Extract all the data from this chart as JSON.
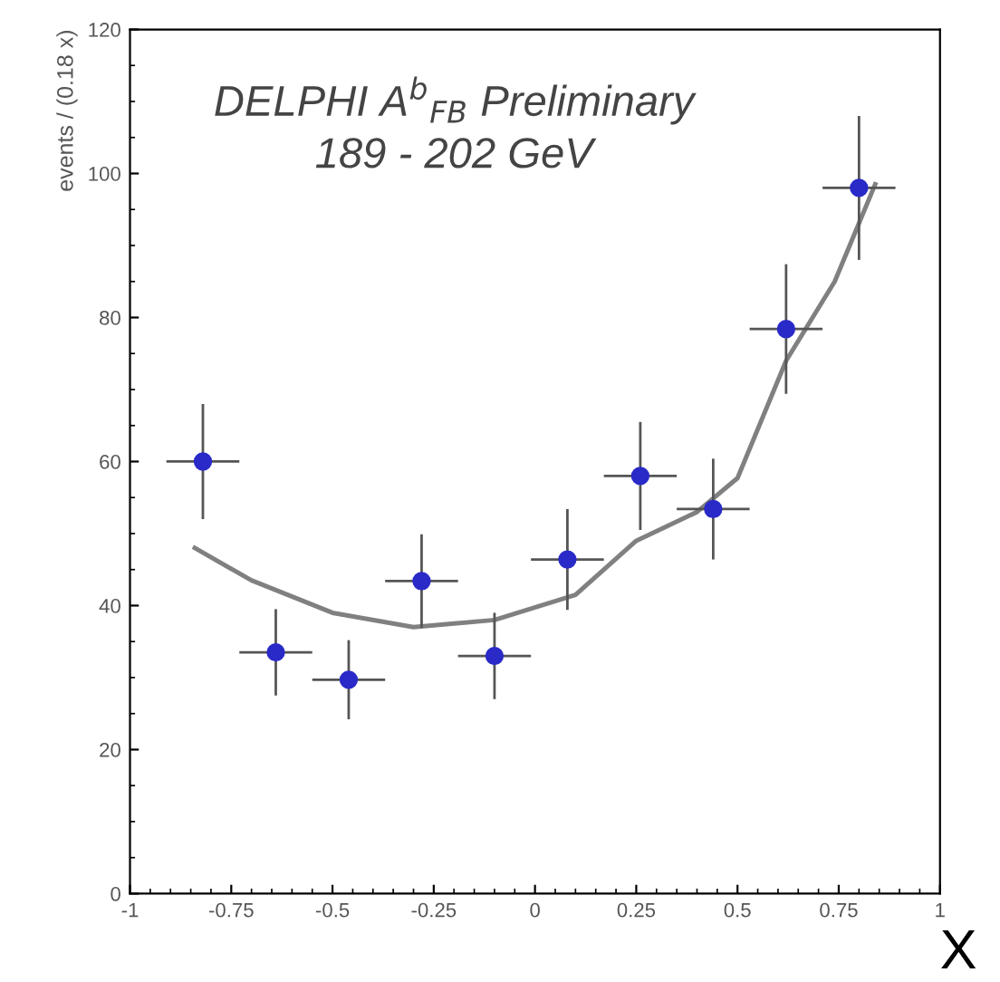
{
  "chart_data": {
    "type": "scatter",
    "title": "DELPHI A$^{b}$$_{FB}$ Preliminary",
    "subtitle": "189 - 202 GeV",
    "xlabel": "X",
    "ylabel": "events / (0.18 x)",
    "x": [
      -0.82,
      -0.64,
      -0.46,
      -0.28,
      -0.1,
      0.08,
      0.26,
      0.44,
      0.62,
      0.8
    ],
    "series": [
      {
        "color": "#2a2ac8",
        "values": [
          60,
          33.5,
          29.7,
          43.4,
          33,
          46.4,
          58,
          53.4,
          78.4,
          98
        ],
        "errors": [
          8,
          6,
          5.5,
          6.5,
          6,
          7,
          7.5,
          7,
          9,
          10
        ],
        "xerrors": [
          0.09,
          0.09,
          0.09,
          0.09,
          0.09,
          0.09,
          0.09,
          0.09,
          0.09,
          0.09
        ],
        "marker": "circle"
      },
      {
        "type": "line",
        "color": "#808080",
        "x": [
          -0.84,
          -0.7,
          -0.5,
          -0.3,
          -0.1,
          0.1,
          0.25,
          0.4,
          0.5,
          0.62,
          0.74,
          0.84
        ],
        "values": [
          48,
          43.5,
          39,
          37,
          38,
          41.5,
          49,
          53,
          57.7,
          74,
          85,
          98.5
        ],
        "marker": "none",
        "line_style": "solid"
      }
    ],
    "xlim": [
      -1,
      1
    ],
    "ylim": [
      0,
      120
    ],
    "xticks": [
      -1,
      -0.75,
      -0.5,
      -0.25,
      0,
      0.25,
      0.5,
      0.75,
      1
    ],
    "yticks": [
      0,
      20,
      40,
      60,
      80,
      100,
      120
    ],
    "grid": false,
    "legend": false
  }
}
